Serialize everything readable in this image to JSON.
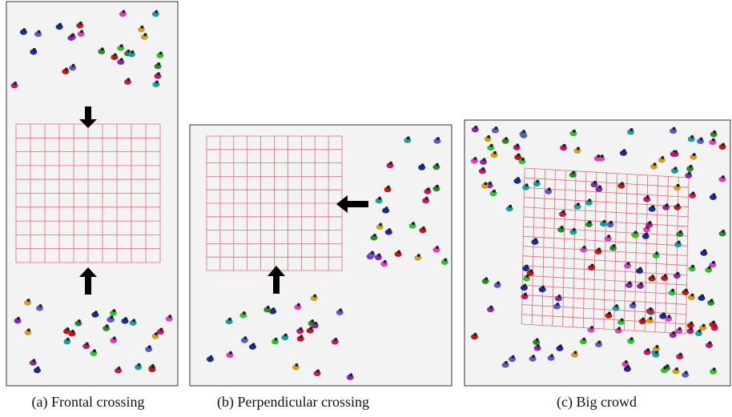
{
  "panels": [
    {
      "caption": "(a) Frontal crossing"
    },
    {
      "caption": "(b) Perpendicular crossing"
    },
    {
      "caption": "(c) Big crowd"
    }
  ]
}
